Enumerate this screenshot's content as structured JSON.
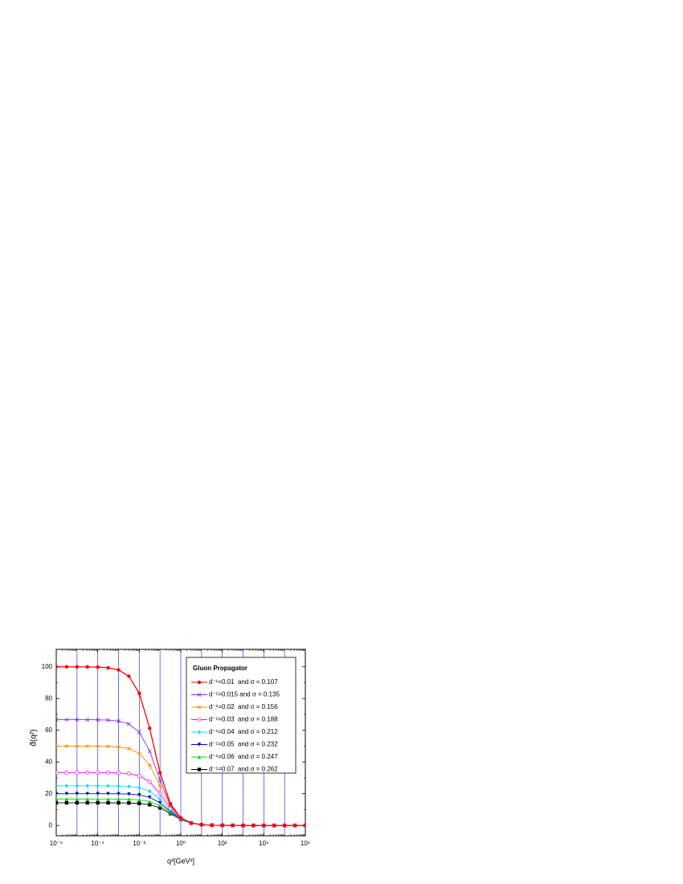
{
  "chart_data": {
    "type": "line",
    "x_label": "q²[GeV²]",
    "y_label": "d̂(q²)",
    "xscale": "log",
    "xgrid": true,
    "xlim": [
      1e-06,
      1000000
    ],
    "ylim": [
      -6.5,
      111
    ],
    "xticks": [
      {
        "value": 1e-06,
        "label": "10⁻⁶"
      },
      {
        "value": 0.0001,
        "label": "10⁻⁴"
      },
      {
        "value": 0.01,
        "label": "10⁻²"
      },
      {
        "value": 1,
        "label": "10⁰"
      },
      {
        "value": 100,
        "label": "10²"
      },
      {
        "value": 10000,
        "label": "10⁴"
      },
      {
        "value": 1000000,
        "label": "10⁶"
      }
    ],
    "yticks": [
      0,
      20,
      40,
      60,
      80,
      100
    ],
    "legend_title": "Gluon Propagator",
    "legend_position": "upper right",
    "x": [
      1e-06,
      3.162e-06,
      1e-05,
      3.162e-05,
      0.0001,
      0.0003162,
      0.001,
      0.003162,
      0.01,
      0.03162,
      0.1,
      0.3162,
      1,
      3.162,
      10,
      31.62,
      100,
      316.2,
      1000,
      3162,
      10000,
      31623,
      100000,
      316228,
      1000000
    ],
    "series": [
      {
        "name": "d⁻¹=0.01  and σ = 0.107",
        "color": "#ff0000",
        "marker": "circle",
        "values": [
          100.0,
          99.99,
          99.98,
          99.94,
          99.8,
          99.37,
          98.04,
          94.05,
          83.33,
          61.26,
          33.33,
          13.66,
          4.76,
          1.56,
          0.4975,
          0.158,
          0.05,
          0.0158,
          0.005,
          0.0016,
          0.0005,
          0.00016,
          5e-05,
          1.6e-05,
          5e-06
        ]
      },
      {
        "name": "d⁻¹=0.015 and σ = 0.135",
        "color": "#8a2be2",
        "marker": "x",
        "values": [
          66.67,
          66.66,
          66.66,
          66.64,
          66.58,
          66.39,
          65.79,
          63.97,
          58.82,
          46.89,
          28.57,
          12.79,
          4.65,
          1.55,
          0.496,
          0.158,
          0.05,
          0.0158,
          0.005,
          0.0016,
          0.0005,
          0.00016,
          5e-05,
          1.6e-05,
          5e-06
        ]
      },
      {
        "name": "d⁻¹=0.02  and σ = 0.156",
        "color": "#ff8c00",
        "marker": "star",
        "values": [
          50.0,
          50.0,
          50.0,
          49.98,
          49.95,
          49.84,
          49.5,
          48.47,
          45.45,
          37.99,
          25.0,
          12.02,
          4.55,
          1.53,
          0.495,
          0.158,
          0.05,
          0.0158,
          0.005,
          0.0016,
          0.0005,
          0.00016,
          5e-05,
          1.6e-05,
          5e-06
        ]
      },
      {
        "name": "d⁻¹=0.03  and σ = 0.188",
        "color": "#ff00ff",
        "marker": "open-circle",
        "values": [
          33.33,
          33.33,
          33.33,
          33.33,
          33.31,
          33.26,
          33.11,
          32.65,
          31.25,
          27.53,
          20.0,
          10.73,
          4.35,
          1.51,
          0.493,
          0.158,
          0.05,
          0.0158,
          0.005,
          0.0016,
          0.0005,
          0.00016,
          5e-05,
          1.6e-05,
          5e-06
        ]
      },
      {
        "name": "d⁻¹=0.04  and σ = 0.212",
        "color": "#00e5ee",
        "marker": "diamond",
        "values": [
          25.0,
          25.0,
          25.0,
          25.0,
          24.99,
          24.96,
          24.88,
          24.61,
          23.81,
          21.59,
          16.67,
          9.69,
          4.17,
          1.49,
          0.49,
          0.158,
          0.05,
          0.0158,
          0.005,
          0.0016,
          0.0005,
          0.00016,
          5e-05,
          1.6e-05,
          5e-06
        ]
      },
      {
        "name": "d⁻¹=0.05  and σ = 0.232",
        "color": "#0000cd",
        "marker": "triangle-down",
        "values": [
          20.0,
          20.0,
          20.0,
          20.0,
          19.99,
          19.97,
          19.92,
          19.75,
          19.23,
          17.75,
          14.29,
          8.83,
          4.0,
          1.47,
          0.488,
          0.158,
          0.05,
          0.0158,
          0.005,
          0.0016,
          0.0005,
          0.00016,
          5e-05,
          1.6e-05,
          5e-06
        ]
      },
      {
        "name": "d⁻¹=0.06  and σ = 0.247",
        "color": "#00dd00",
        "marker": "triangle-up",
        "values": [
          16.67,
          16.67,
          16.67,
          16.67,
          16.66,
          16.65,
          16.61,
          16.49,
          16.13,
          15.08,
          12.5,
          8.12,
          3.85,
          1.45,
          0.485,
          0.158,
          0.05,
          0.0158,
          0.005,
          0.0016,
          0.0005,
          0.00016,
          5e-05,
          1.6e-05,
          5e-06
        ]
      },
      {
        "name": "d⁻¹=0.07  and σ = 0.262",
        "color": "#000000",
        "marker": "square",
        "values": [
          14.29,
          14.29,
          14.29,
          14.29,
          14.28,
          14.27,
          14.25,
          14.16,
          13.89,
          13.1,
          11.11,
          7.51,
          3.7,
          1.42,
          0.483,
          0.158,
          0.05,
          0.0158,
          0.005,
          0.0016,
          0.0005,
          0.00016,
          5e-05,
          1.6e-05,
          5e-06
        ]
      }
    ]
  }
}
